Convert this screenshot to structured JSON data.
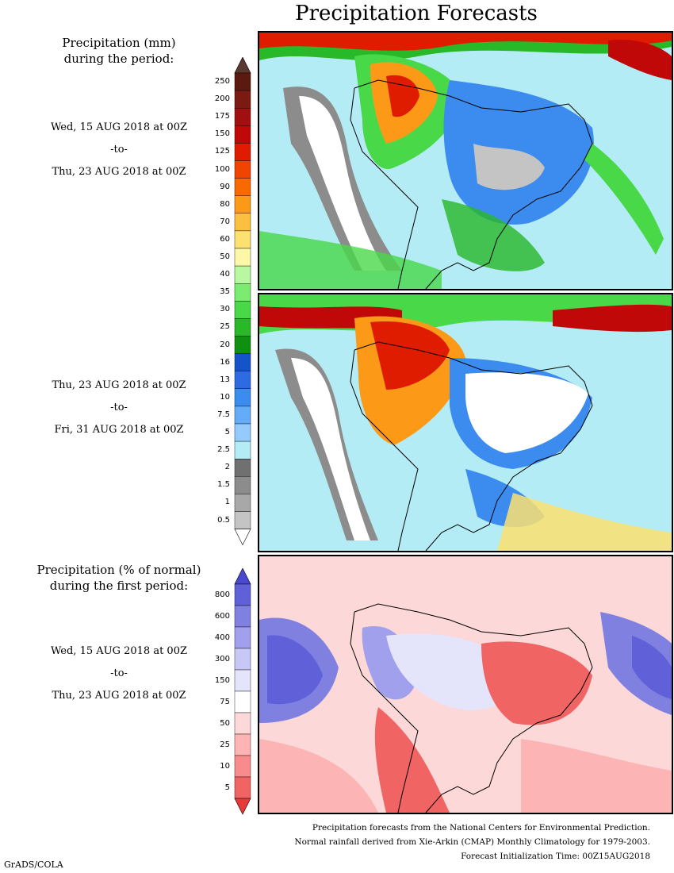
{
  "title": "Precipitation Forecasts",
  "precip_header": [
    "Precipitation (mm)",
    "during the period:"
  ],
  "period1": {
    "start": "Wed, 15 AUG 2018 at 00Z",
    "sep": "-to-",
    "end": "Thu, 23 AUG 2018 at 00Z"
  },
  "period2": {
    "start": "Thu, 23 AUG 2018 at 00Z",
    "sep": "-to-",
    "end": "Fri, 31 AUG 2018 at 00Z"
  },
  "pct_header": [
    "Precipitation (% of normal)",
    "during the first period:"
  ],
  "period3": {
    "start": "Wed, 15 AUG 2018 at 00Z",
    "sep": "-to-",
    "end": "Thu, 23 AUG 2018 at 00Z"
  },
  "mm_scale": {
    "labels": [
      "250",
      "200",
      "175",
      "150",
      "125",
      "100",
      "90",
      "80",
      "70",
      "60",
      "50",
      "40",
      "35",
      "30",
      "25",
      "20",
      "16",
      "13",
      "10",
      "7.5",
      "5",
      "2.5",
      "2",
      "1.5",
      "1",
      "0.5"
    ],
    "colors": [
      "#5a1a10",
      "#7a1a12",
      "#a01010",
      "#c00808",
      "#e01c00",
      "#f04400",
      "#f86a00",
      "#fc9a18",
      "#fcc040",
      "#fce070",
      "#fcf8a8",
      "#b8f8a0",
      "#7cec70",
      "#48d848",
      "#28b828",
      "#109010",
      "#1454c8",
      "#2c6ce0",
      "#3c8cf0",
      "#64acf8",
      "#94cafc",
      "#b4ecf6",
      "#707070",
      "#8c8c8c",
      "#a8a8a8",
      "#c4c4c4"
    ],
    "top_arrow_color": "#5a3a30",
    "bottom_arrow_color": "#ffffff"
  },
  "pct_scale": {
    "labels": [
      "800",
      "600",
      "400",
      "300",
      "150",
      "75",
      "50",
      "25",
      "10",
      "5"
    ],
    "colors": [
      "#6060d8",
      "#8080e0",
      "#a0a0ec",
      "#c8c8f6",
      "#e4e4fa",
      "#ffffff",
      "#fcd8d8",
      "#fcb4b4",
      "#f88c8c",
      "#f06464"
    ],
    "top_arrow_color": "#4848d0",
    "bottom_arrow_color": "#e83838"
  },
  "footer": [
    "Precipitation forecasts from the National Centers for Environmental Prediction.",
    "Normal rainfall derived from Xie-Arkin (CMAP) Monthly Climatology for 1979-2003.",
    "Forecast Initialization Time: 00Z15AUG2018"
  ],
  "credit": "GrADS/COLA"
}
